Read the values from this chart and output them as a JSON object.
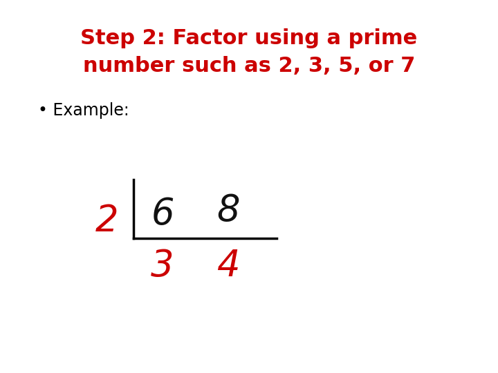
{
  "title_line1": "Step 2: Factor using a prime",
  "title_line2": "number such as 2, 3, 5, or 7",
  "title_color": "#cc0000",
  "title_fontsize": 22,
  "title_fontweight": "bold",
  "bullet_text": "• Example:",
  "bullet_fontsize": 17,
  "bullet_color": "#000000",
  "background_color": "#ffffff",
  "prime_number": "2",
  "top_numbers": [
    "6",
    "8"
  ],
  "bottom_numbers": [
    "3",
    "4"
  ],
  "handwritten_color": "#cc0000",
  "black_color": "#111111",
  "line_color": "#000000",
  "number_fontsize": 38
}
